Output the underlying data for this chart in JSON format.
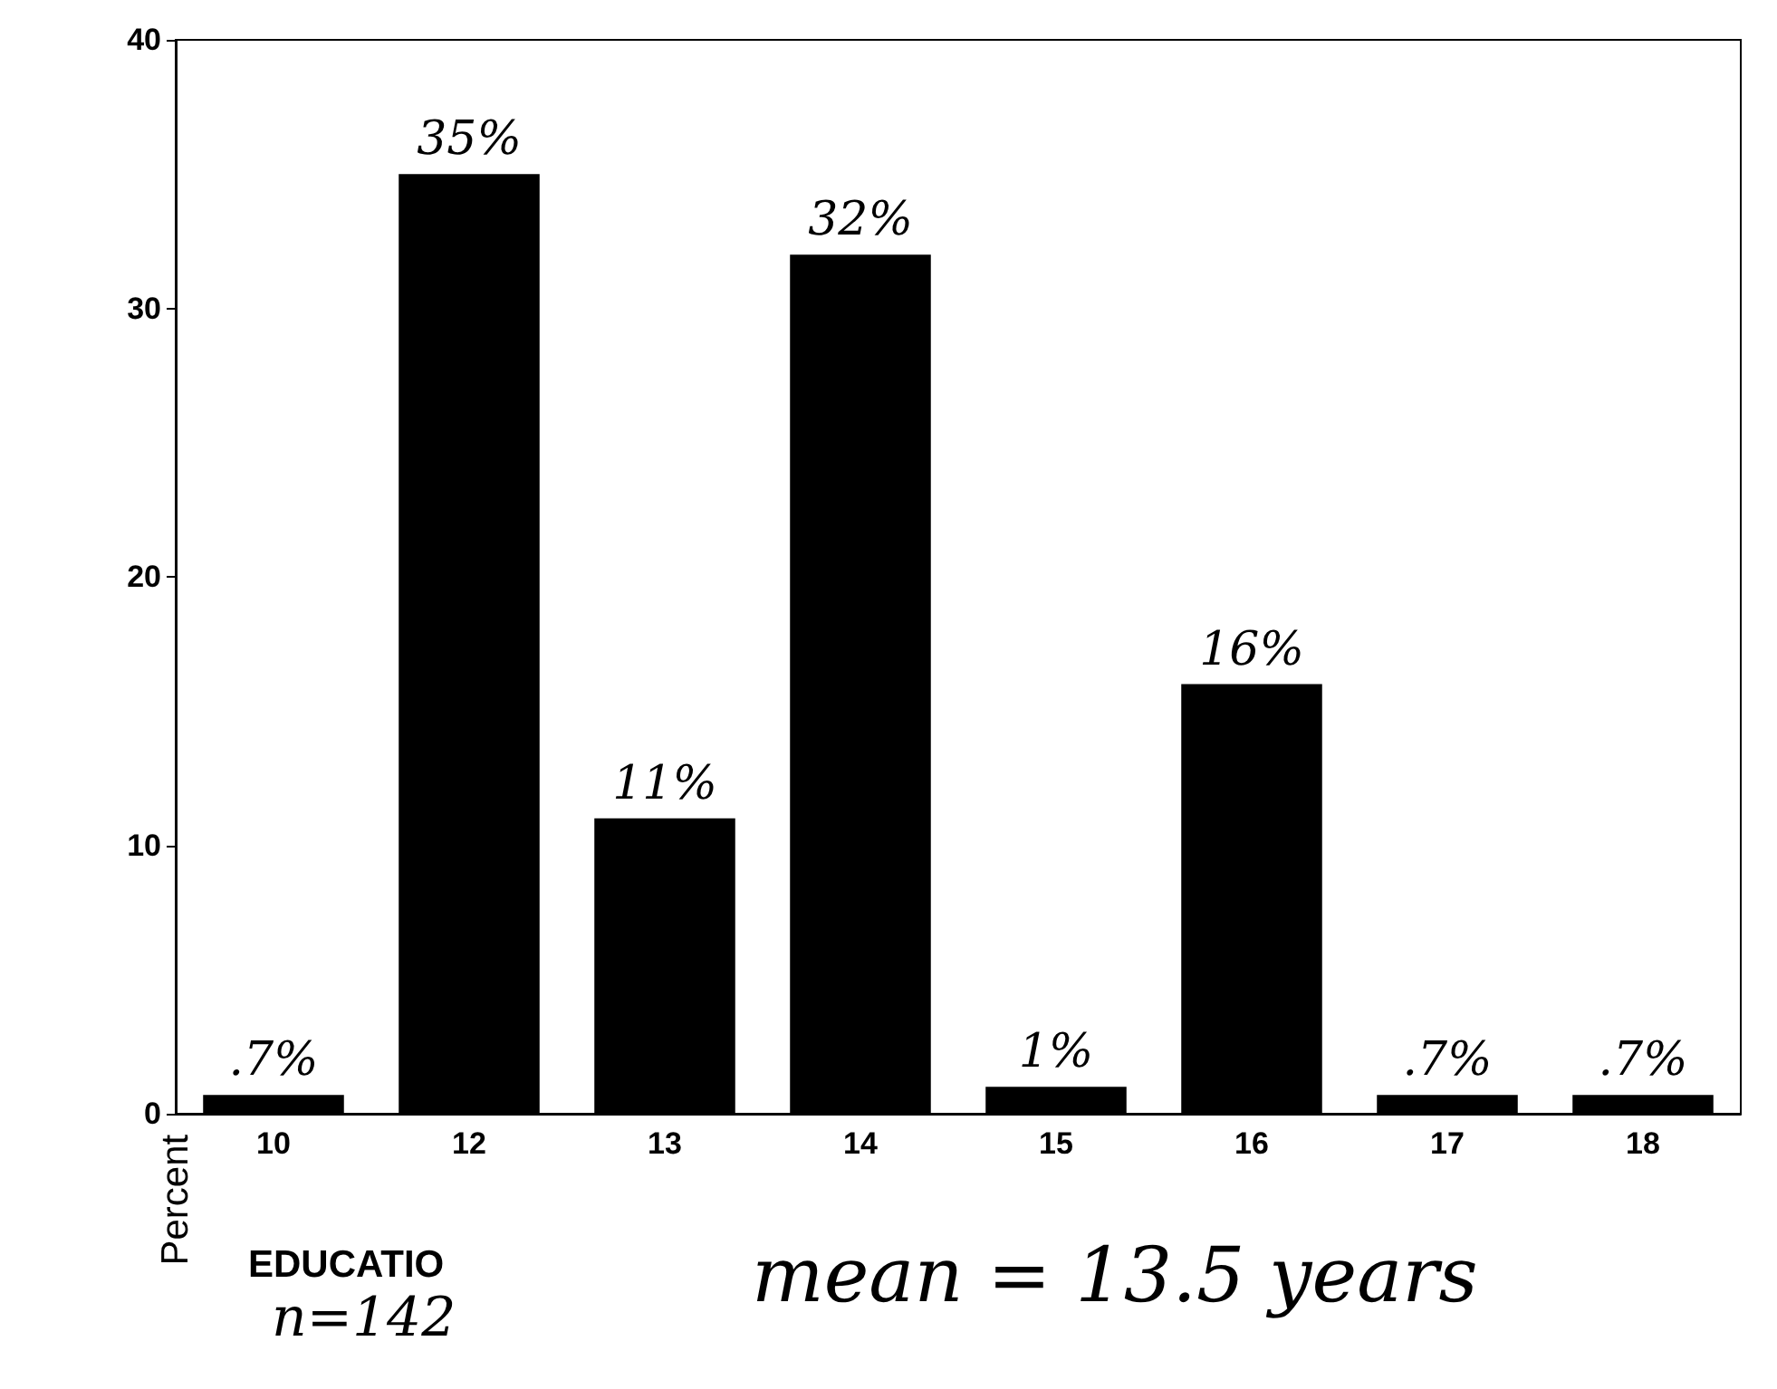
{
  "chart_data": {
    "type": "bar",
    "ylabel": "Percent",
    "xlabel": "EDUCATIO",
    "categories": [
      "10",
      "12",
      "13",
      "14",
      "15",
      "16",
      "17",
      "18"
    ],
    "values": [
      0.7,
      35,
      11,
      32,
      1,
      16,
      0.7,
      0.7
    ],
    "value_labels": [
      ".7%",
      "35%",
      "11%",
      "32%",
      "1%",
      "16%",
      ".7%",
      ".7%"
    ],
    "color": "#000000",
    "ylim": [
      0,
      40
    ],
    "yticks": [
      0,
      10,
      20,
      30,
      40
    ],
    "annotations": [
      "n=142",
      "mean = 13.5 years"
    ]
  }
}
